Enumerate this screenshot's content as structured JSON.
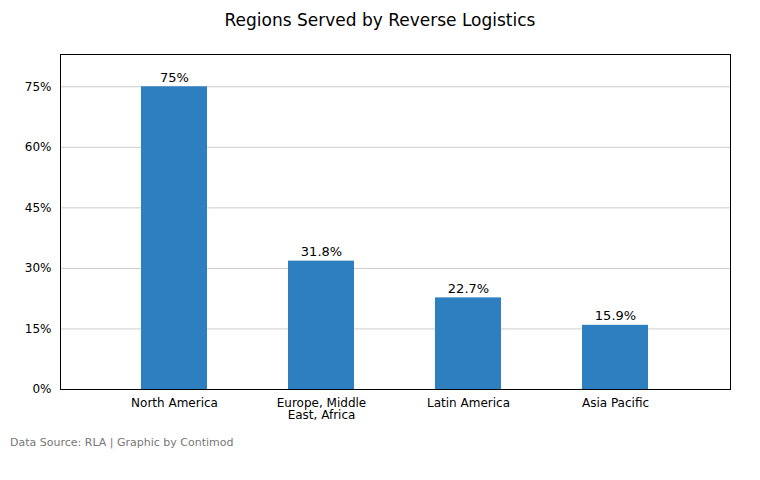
{
  "chart_data": {
    "type": "bar",
    "title": "Regions Served by Reverse Logistics",
    "categories": [
      "North America",
      "Europe, Middle\nEast, Africa",
      "Latin America",
      "Asia Pacific"
    ],
    "values": [
      75.0,
      31.8,
      22.7,
      15.9
    ],
    "value_labels": [
      "75%",
      "31.8%",
      "22.7%",
      "15.9%"
    ],
    "color": "#2E7FBF",
    "ylim": [
      0,
      83
    ],
    "yticks": [
      {
        "value": 0,
        "label": "0%"
      },
      {
        "value": 15,
        "label": "15%"
      },
      {
        "value": 30,
        "label": "30%"
      },
      {
        "value": 45,
        "label": "45%"
      },
      {
        "value": 60,
        "label": "60%"
      },
      {
        "value": 75,
        "label": "75%"
      }
    ],
    "grid": true,
    "footnote": "Data Source: RLA | Graphic by Contimod"
  }
}
